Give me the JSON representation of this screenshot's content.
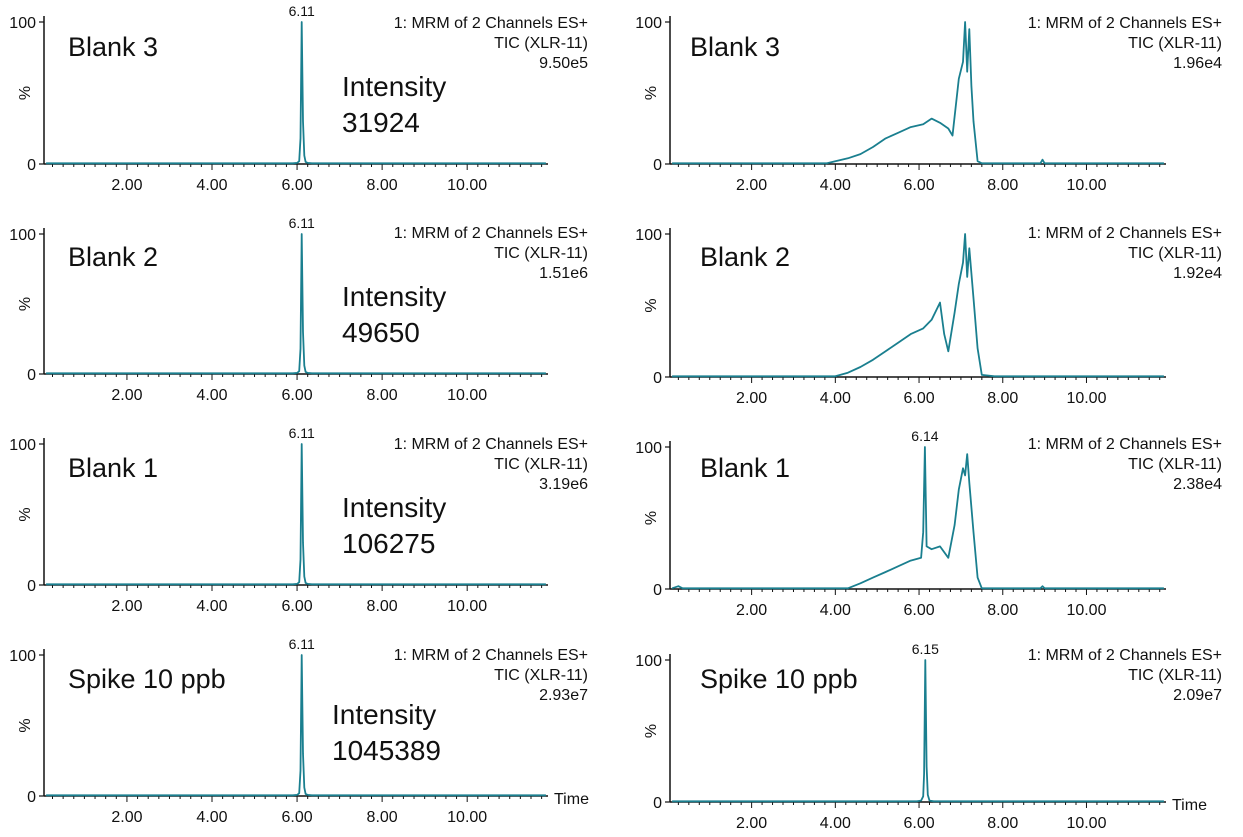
{
  "style": {
    "trace_color": "#1a7f8f",
    "axis_color": "#111111"
  },
  "chart_data": [
    {
      "type": "line",
      "label": "Blank 3",
      "intensity_label": "Intensity",
      "intensity_value": "31924",
      "info": [
        "1: MRM of 2 Channels ES+",
        "TIC (XLR-11)",
        "9.50e5"
      ],
      "peak_label": "6.11",
      "peak_x": 6.11,
      "ylabel": "%",
      "yticks": [
        "0",
        "100"
      ],
      "xticks": [
        "2.00",
        "4.00",
        "6.00",
        "8.00",
        "10.00"
      ],
      "xlabel": "",
      "xlim": [
        0.05,
        11.9
      ],
      "ylim": [
        0,
        100
      ],
      "series": [
        {
          "x": [
            0.1,
            5.9,
            6.0,
            6.05,
            6.08,
            6.11,
            6.14,
            6.17,
            6.2,
            6.25,
            6.35,
            11.85
          ],
          "y": [
            0.5,
            0.5,
            0.8,
            2,
            18,
            100,
            30,
            6,
            1.5,
            0.8,
            0.5,
            0.5
          ]
        }
      ]
    },
    {
      "type": "line",
      "label": "Blank 2",
      "intensity_label": "Intensity",
      "intensity_value": "49650",
      "info": [
        "1: MRM of 2 Channels ES+",
        "TIC (XLR-11)",
        "1.51e6"
      ],
      "peak_label": "6.11",
      "peak_x": 6.11,
      "ylabel": "%",
      "yticks": [
        "0",
        "100"
      ],
      "xticks": [
        "2.00",
        "4.00",
        "6.00",
        "8.00",
        "10.00"
      ],
      "xlabel": "",
      "xlim": [
        0.05,
        11.9
      ],
      "ylim": [
        0,
        100
      ],
      "series": [
        {
          "x": [
            0.1,
            5.9,
            6.0,
            6.05,
            6.08,
            6.11,
            6.14,
            6.17,
            6.2,
            6.25,
            6.35,
            11.85
          ],
          "y": [
            0.5,
            0.5,
            0.8,
            2,
            18,
            100,
            30,
            6,
            1.5,
            0.8,
            0.5,
            0.5
          ]
        }
      ]
    },
    {
      "type": "line",
      "label": "Blank 1",
      "intensity_label": "Intensity",
      "intensity_value": "106275",
      "info": [
        "1: MRM of 2 Channels ES+",
        "TIC (XLR-11)",
        "3.19e6"
      ],
      "peak_label": "6.11",
      "peak_x": 6.11,
      "ylabel": "%",
      "yticks": [
        "0",
        "100"
      ],
      "xticks": [
        "2.00",
        "4.00",
        "6.00",
        "8.00",
        "10.00"
      ],
      "xlabel": "",
      "xlim": [
        0.05,
        11.9
      ],
      "ylim": [
        0,
        100
      ],
      "series": [
        {
          "x": [
            0.1,
            5.9,
            6.0,
            6.05,
            6.08,
            6.11,
            6.14,
            6.17,
            6.2,
            6.25,
            6.35,
            11.85
          ],
          "y": [
            0.5,
            0.5,
            0.8,
            2,
            18,
            100,
            30,
            6,
            1.5,
            0.8,
            0.5,
            0.5
          ]
        }
      ]
    },
    {
      "type": "line",
      "label": "Spike 10 ppb",
      "intensity_label": "Intensity",
      "intensity_value": "1045389",
      "info": [
        "1: MRM of 2 Channels ES+",
        "TIC (XLR-11)",
        "2.93e7"
      ],
      "peak_label": "6.11",
      "peak_x": 6.11,
      "ylabel": "%",
      "yticks": [
        "0",
        "100"
      ],
      "xticks": [
        "2.00",
        "4.00",
        "6.00",
        "8.00",
        "10.00"
      ],
      "xlabel": "Time",
      "xlim": [
        0.05,
        11.9
      ],
      "ylim": [
        0,
        100
      ],
      "series": [
        {
          "x": [
            0.1,
            5.9,
            6.0,
            6.05,
            6.08,
            6.11,
            6.14,
            6.17,
            6.2,
            6.25,
            6.35,
            11.85
          ],
          "y": [
            0.5,
            0.5,
            0.8,
            2,
            18,
            100,
            30,
            6,
            1.5,
            0.8,
            0.5,
            0.5
          ]
        }
      ]
    },
    {
      "type": "line",
      "label": "Blank 3",
      "info": [
        "1: MRM of 2 Channels ES+",
        "TIC (XLR-11)",
        "1.96e4"
      ],
      "ylabel": "%",
      "yticks": [
        "0",
        "100"
      ],
      "xticks": [
        "2.00",
        "4.00",
        "6.00",
        "8.00",
        "10.00"
      ],
      "xlabel": "",
      "xlim": [
        0.05,
        11.9
      ],
      "ylim": [
        0,
        100
      ],
      "series": [
        {
          "x": [
            0.1,
            3.8,
            4.0,
            4.3,
            4.6,
            4.9,
            5.2,
            5.5,
            5.8,
            6.1,
            6.3,
            6.5,
            6.7,
            6.8,
            6.95,
            7.05,
            7.1,
            7.15,
            7.2,
            7.25,
            7.3,
            7.4,
            7.5,
            8.9,
            8.95,
            9.0,
            11.85
          ],
          "y": [
            0.5,
            0.5,
            2,
            4,
            7,
            12,
            18,
            22,
            26,
            28,
            32,
            29,
            25,
            20,
            60,
            72,
            100,
            65,
            95,
            55,
            30,
            2,
            0.5,
            0.5,
            3,
            0.5,
            0.5
          ]
        }
      ]
    },
    {
      "type": "line",
      "label": "Blank 2",
      "info": [
        "1: MRM of 2 Channels ES+",
        "TIC (XLR-11)",
        "1.92e4"
      ],
      "ylabel": "%",
      "yticks": [
        "0",
        "100"
      ],
      "xticks": [
        "2.00",
        "4.00",
        "6.00",
        "8.00",
        "10.00"
      ],
      "xlabel": "",
      "xlim": [
        0.05,
        11.9
      ],
      "ylim": [
        0,
        100
      ],
      "series": [
        {
          "x": [
            0.1,
            4.0,
            4.3,
            4.6,
            4.9,
            5.2,
            5.5,
            5.8,
            6.1,
            6.3,
            6.5,
            6.6,
            6.7,
            6.85,
            6.95,
            7.05,
            7.1,
            7.15,
            7.2,
            7.3,
            7.4,
            7.5,
            7.8,
            11.85
          ],
          "y": [
            0.5,
            0.5,
            3,
            7,
            12,
            18,
            24,
            30,
            34,
            40,
            52,
            30,
            18,
            45,
            65,
            80,
            100,
            70,
            90,
            55,
            20,
            1.5,
            0.5,
            0.5
          ]
        }
      ]
    },
    {
      "type": "line",
      "label": "Blank 1",
      "info": [
        "1: MRM of 2 Channels ES+",
        "TIC (XLR-11)",
        "2.38e4"
      ],
      "peak_label": "6.14",
      "peak_x": 6.14,
      "ylabel": "%",
      "yticks": [
        "0",
        "100"
      ],
      "xticks": [
        "2.00",
        "4.00",
        "6.00",
        "8.00",
        "10.00"
      ],
      "xlabel": "",
      "xlim": [
        0.05,
        11.9
      ],
      "ylim": [
        0,
        100
      ],
      "series": [
        {
          "x": [
            0.1,
            0.25,
            0.35,
            4.3,
            4.6,
            4.9,
            5.2,
            5.5,
            5.8,
            6.05,
            6.1,
            6.14,
            6.18,
            6.3,
            6.5,
            6.7,
            6.85,
            6.95,
            7.05,
            7.1,
            7.15,
            7.2,
            7.3,
            7.4,
            7.5,
            8.9,
            8.95,
            9.0,
            11.85
          ],
          "y": [
            0.5,
            2,
            0.5,
            0.5,
            4,
            8,
            12,
            16,
            20,
            22,
            40,
            100,
            30,
            28,
            30,
            22,
            45,
            70,
            85,
            80,
            95,
            75,
            40,
            8,
            0.5,
            0.5,
            2,
            0.5,
            0.5
          ]
        }
      ]
    },
    {
      "type": "line",
      "label": "Spike 10 ppb",
      "info": [
        "1: MRM of 2 Channels ES+",
        "TIC (XLR-11)",
        "2.09e7"
      ],
      "peak_label": "6.15",
      "peak_x": 6.15,
      "ylabel": "%",
      "yticks": [
        "0",
        "100"
      ],
      "xticks": [
        "2.00",
        "4.00",
        "6.00",
        "8.00",
        "10.00"
      ],
      "xlabel": "Time",
      "xlim": [
        0.05,
        11.9
      ],
      "ylim": [
        0,
        100
      ],
      "series": [
        {
          "x": [
            0.1,
            5.95,
            6.05,
            6.1,
            6.12,
            6.15,
            6.18,
            6.21,
            6.25,
            6.35,
            11.85
          ],
          "y": [
            0.5,
            0.5,
            1,
            4,
            20,
            100,
            25,
            5,
            1,
            0.5,
            0.5
          ]
        }
      ]
    }
  ]
}
